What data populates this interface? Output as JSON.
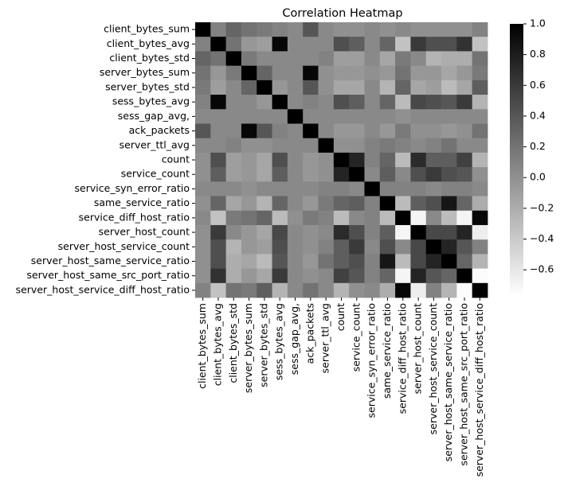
{
  "chart_data": {
    "type": "heatmap",
    "title": "Correlation Heatmap",
    "categories": [
      "client_bytes_sum",
      "client_bytes_avg",
      "client_bytes_std",
      "server_bytes_sum",
      "server_bytes_std",
      "sess_bytes_avg",
      "sess_gap_avg,",
      "ack_packets",
      "server_ttl_avg",
      "count",
      "service_count",
      "service_syn_error_ratio",
      "same_service_ratio",
      "service_diff_host_ratio",
      "server_host_count",
      "server_host_service_count",
      "server_host_same_service_ratio",
      "server_host_same_src_port_ratio",
      "server_host_service_diff_host_ratio"
    ],
    "z": [
      [
        1,
        0.1,
        0.3,
        0.2,
        0.15,
        0.1,
        0.05,
        0.4,
        0.05,
        0,
        0,
        0.05,
        0,
        0.05,
        0,
        0,
        0,
        0,
        0.1
      ],
      [
        0.1,
        1,
        0.2,
        -0.05,
        -0.1,
        0.95,
        0.05,
        0.05,
        0.05,
        0.45,
        0.35,
        0.05,
        0.3,
        -0.35,
        0.6,
        0.45,
        0.45,
        0.65,
        -0.35
      ],
      [
        0.3,
        0.2,
        1,
        0.15,
        0.05,
        0.05,
        0.05,
        0.05,
        0.1,
        -0.1,
        -0.1,
        0.05,
        -0.15,
        0.15,
        0.05,
        -0.25,
        -0.2,
        -0.2,
        0.2
      ],
      [
        0.2,
        -0.05,
        0.15,
        1,
        0.3,
        0.05,
        0.05,
        0.95,
        0,
        -0.05,
        -0.05,
        0,
        -0.05,
        0.2,
        -0.05,
        -0.05,
        -0.15,
        -0.05,
        0.15
      ],
      [
        0.15,
        -0.1,
        0.05,
        0.3,
        1,
        -0.05,
        0.05,
        0.4,
        0,
        -0.15,
        -0.15,
        0.05,
        -0.25,
        0.3,
        -0.15,
        -0.1,
        -0.3,
        -0.15,
        0.35
      ],
      [
        0.1,
        0.95,
        0.05,
        0.05,
        -0.05,
        1,
        0.05,
        0.1,
        0.05,
        0.45,
        0.35,
        0.05,
        0.3,
        -0.3,
        0.5,
        0.45,
        0.4,
        0.6,
        -0.25
      ],
      [
        0.05,
        0.05,
        0.05,
        0.05,
        0.05,
        0.05,
        1,
        0.05,
        0.05,
        0.05,
        0.05,
        0.05,
        0.05,
        0,
        0.05,
        0.05,
        0.05,
        0.05,
        0.05
      ],
      [
        0.4,
        0.05,
        0.05,
        0.95,
        0.4,
        0.1,
        0.05,
        1,
        0.05,
        -0.05,
        -0.05,
        0.05,
        -0.05,
        0.15,
        0,
        0,
        -0.05,
        0,
        0.2
      ],
      [
        0.05,
        0.05,
        0.1,
        0,
        0,
        0.05,
        0.05,
        0.05,
        1,
        0,
        0,
        0.1,
        0.15,
        0.1,
        0.05,
        0.1,
        0.2,
        0.05,
        0.05
      ],
      [
        0,
        0.45,
        -0.1,
        -0.05,
        -0.15,
        0.45,
        0.05,
        -0.05,
        0,
        1,
        0.75,
        0.1,
        0.3,
        -0.3,
        0.7,
        0.35,
        0.35,
        0.55,
        -0.25
      ],
      [
        0,
        0.35,
        -0.1,
        -0.05,
        -0.15,
        0.35,
        0.05,
        -0.05,
        0,
        0.75,
        1,
        0.05,
        0.35,
        0.05,
        0.45,
        0.6,
        0.45,
        0.4,
        0
      ],
      [
        0.05,
        0.05,
        0.05,
        0,
        0.05,
        0.05,
        0.05,
        0.05,
        0.1,
        0.1,
        0.05,
        1,
        0.1,
        0.1,
        0.1,
        0.05,
        0.1,
        0.1,
        0.05
      ],
      [
        0,
        0.3,
        -0.15,
        -0.05,
        -0.25,
        0.3,
        0.05,
        -0.05,
        0.15,
        0.3,
        0.35,
        0.1,
        1,
        -0.3,
        0.35,
        0.45,
        0.85,
        0.3,
        -0.2
      ],
      [
        0.05,
        -0.35,
        0.15,
        0.2,
        0.3,
        -0.3,
        0,
        0.15,
        0.1,
        -0.3,
        0.05,
        0.1,
        -0.3,
        1,
        -0.7,
        0.05,
        -0.3,
        -0.7,
        0.95
      ],
      [
        0,
        0.6,
        0.05,
        -0.05,
        -0.15,
        0.5,
        0.05,
        0,
        0.05,
        0.7,
        0.45,
        0.1,
        0.35,
        -0.7,
        1,
        0.5,
        0.5,
        0.75,
        -0.65
      ],
      [
        0,
        0.45,
        -0.25,
        -0.05,
        -0.1,
        0.45,
        0.05,
        0,
        0.1,
        0.35,
        0.6,
        0.05,
        0.45,
        0.05,
        0.5,
        1,
        0.75,
        0.4,
        0.1
      ],
      [
        0,
        0.45,
        -0.2,
        -0.15,
        -0.3,
        0.4,
        0.05,
        -0.05,
        0.2,
        0.35,
        0.45,
        0.1,
        0.85,
        -0.3,
        0.5,
        0.75,
        1,
        0.3,
        -0.25
      ],
      [
        0,
        0.65,
        -0.2,
        -0.05,
        -0.15,
        0.6,
        0.05,
        0,
        0.05,
        0.55,
        0.4,
        0.1,
        0.3,
        -0.7,
        0.75,
        0.4,
        0.3,
        1,
        -0.75
      ],
      [
        0.1,
        -0.35,
        0.2,
        0.15,
        0.35,
        -0.25,
        0.05,
        0.2,
        0.05,
        -0.25,
        0,
        0.05,
        -0.2,
        0.95,
        -0.65,
        0.1,
        -0.25,
        -0.75,
        1
      ]
    ],
    "colormap": "gray_r",
    "zlim": [
      -0.77,
      1.0
    ],
    "zticks": [
      {
        "value": 1.0,
        "label": "1.0"
      },
      0.8,
      0.6,
      0.4,
      0.2,
      {
        "value": 0.0,
        "label": "0.0"
      },
      {
        "value": -0.2,
        "label": "−0.2"
      },
      {
        "value": -0.4,
        "label": "−0.4"
      },
      {
        "value": -0.6,
        "label": "−0.6"
      }
    ]
  }
}
